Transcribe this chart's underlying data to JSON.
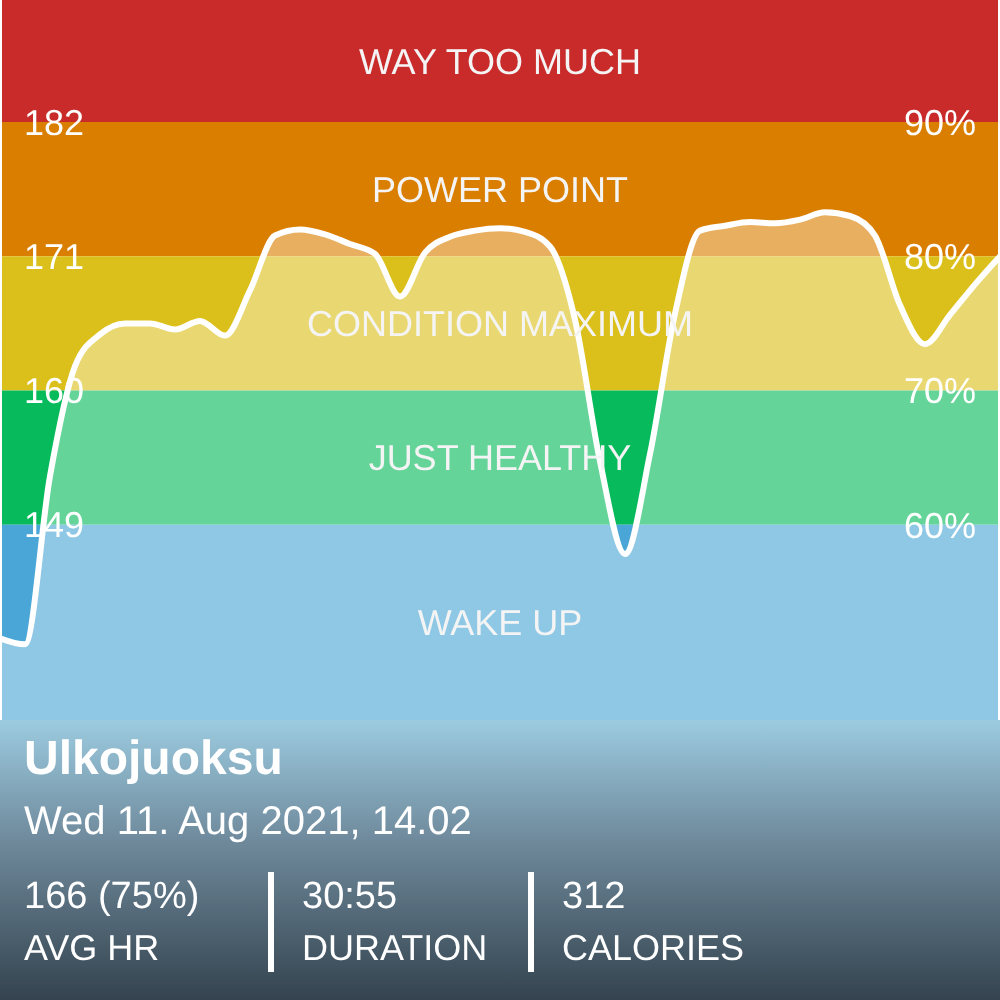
{
  "chart_data": {
    "type": "area",
    "categories": [
      null,
      null,
      null,
      null,
      null,
      null,
      null,
      null,
      null,
      null,
      null,
      null,
      null,
      null,
      null,
      null,
      null,
      null,
      null,
      null,
      null,
      null,
      null,
      null,
      null,
      null,
      null,
      null,
      null,
      null,
      null,
      null,
      null,
      null,
      null,
      null,
      null,
      null,
      null,
      null,
      null
    ],
    "series": [
      {
        "color": "#ffffff",
        "values": [
          139.7,
          139.2,
          153,
          162,
          164.6,
          165.5,
          165.5,
          165,
          165.7,
          164.5,
          168.2,
          172.7,
          173.2,
          172.8,
          172,
          171.2,
          167.7,
          171.3,
          172.6,
          173.1,
          173.3,
          173,
          171.8,
          165.8,
          154.2,
          146.6,
          154.8,
          166.3,
          173.1,
          173.5,
          173.8,
          173.7,
          174,
          174.6,
          174.3,
          172.7,
          167,
          163.8,
          166.2,
          168.7,
          171
        ]
      }
    ],
    "ylim": [
      133,
      192
    ],
    "yticks": [
      149,
      160,
      171,
      182
    ],
    "y2lim": [
      45.5,
      99.1
    ],
    "y2ticks": [
      {
        "value": 60,
        "label": "60%"
      },
      {
        "value": 70,
        "label": "70%"
      },
      {
        "value": 80,
        "label": "80%"
      },
      {
        "value": 90,
        "label": "90%"
      }
    ],
    "bands": [
      {
        "axis": "y",
        "from": 182,
        "to": 192,
        "label": "WAY TOO MUCH",
        "color": "#c92b2b"
      },
      {
        "axis": "y",
        "from": 171,
        "to": 182,
        "label": "POWER POINT",
        "color": "#da7e00"
      },
      {
        "axis": "y",
        "from": 160,
        "to": 171,
        "label": "CONDITION MAXIMUM",
        "color": "#dbc01c"
      },
      {
        "axis": "y",
        "from": 149,
        "to": 160,
        "label": "JUST HEALTHY",
        "color": "#07ba5b"
      },
      {
        "axis": "y",
        "from": 133,
        "to": 149,
        "label": "WAKE UP",
        "color": "#4aa6d6"
      }
    ],
    "annotations": [
      "Ulkojuoksu",
      "Wed 11. Aug 2021, 14.02",
      "166 (75%)",
      "AVG HR",
      "30:55",
      "DURATION",
      "312",
      "CALORIES"
    ],
    "legend": false,
    "grid": false
  }
}
